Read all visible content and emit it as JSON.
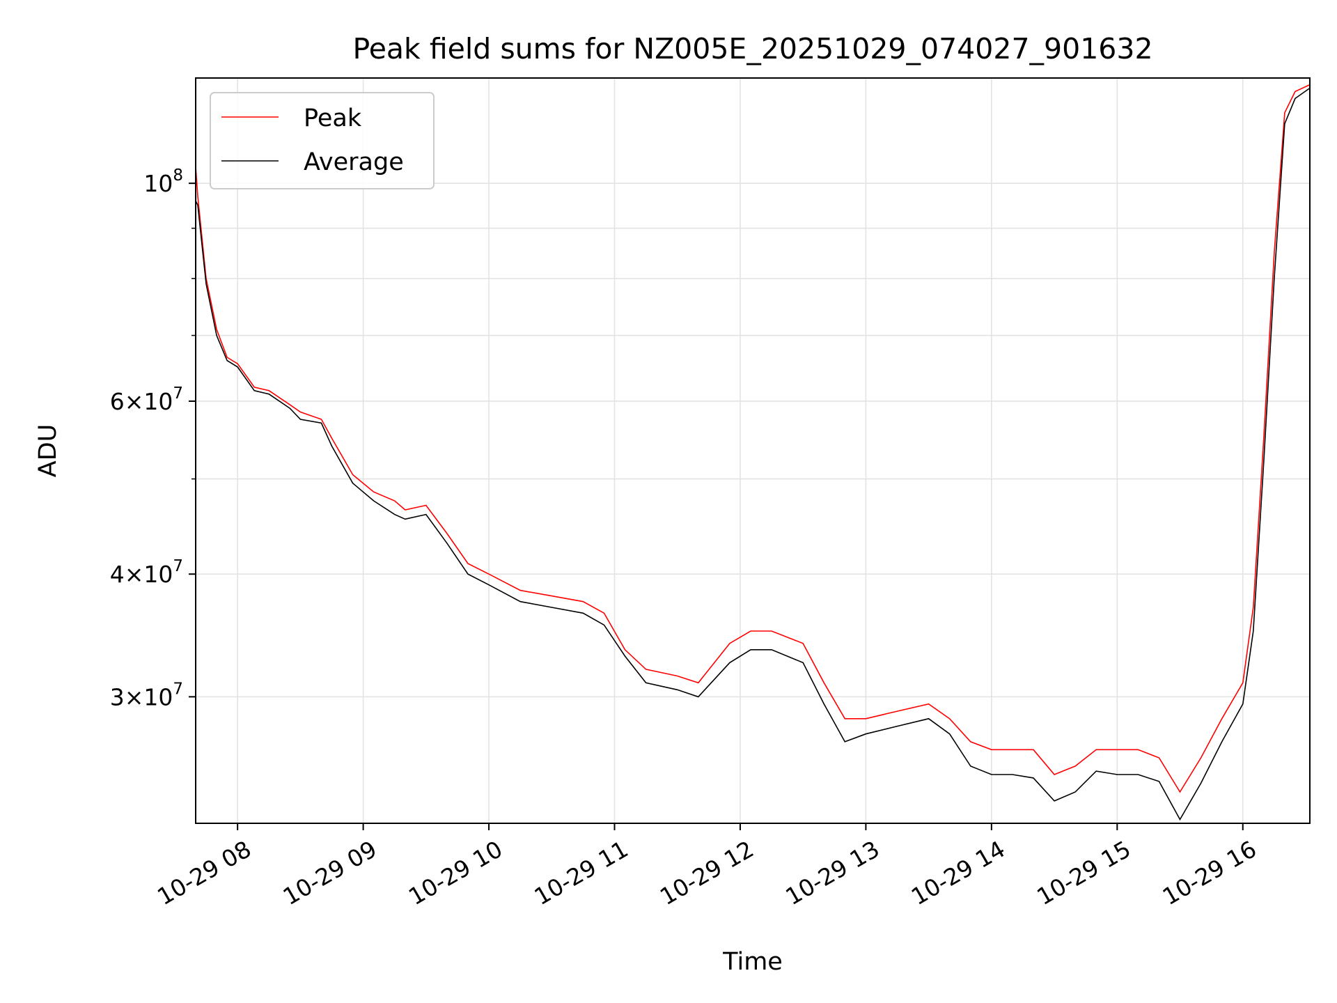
{
  "chart_data": {
    "type": "line",
    "title": "Peak field sums for NZ005E_20251029_074027_901632",
    "xlabel": "Time",
    "ylabel": "ADU",
    "yscale": "log",
    "grid": true,
    "legend_position": "top-left",
    "xlim": [
      "2025-10-29 07:40",
      "2025-10-29 16:32"
    ],
    "ylim": [
      22300000,
      128000000
    ],
    "x_ticks": [
      {
        "value": "2025-10-29 08:00",
        "label": "10-29 08"
      },
      {
        "value": "2025-10-29 09:00",
        "label": "10-29 09"
      },
      {
        "value": "2025-10-29 10:00",
        "label": "10-29 10"
      },
      {
        "value": "2025-10-29 11:00",
        "label": "10-29 11"
      },
      {
        "value": "2025-10-29 12:00",
        "label": "10-29 12"
      },
      {
        "value": "2025-10-29 13:00",
        "label": "10-29 13"
      },
      {
        "value": "2025-10-29 14:00",
        "label": "10-29 14"
      },
      {
        "value": "2025-10-29 15:00",
        "label": "10-29 15"
      },
      {
        "value": "2025-10-29 16:00",
        "label": "10-29 16"
      }
    ],
    "y_ticks": [
      {
        "value": 30000000,
        "mantissa": "3",
        "exponent": "7"
      },
      {
        "value": 40000000,
        "mantissa": "4",
        "exponent": "7"
      },
      {
        "value": 60000000,
        "mantissa": "6",
        "exponent": "7"
      },
      {
        "value": 100000000,
        "mantissa": "",
        "exponent": "8"
      }
    ],
    "y_minor_ticks": [
      50000000,
      70000000,
      80000000,
      90000000
    ],
    "series": [
      {
        "name": "Peak",
        "color": "#ff0000",
        "x": [
          "2025-10-29 07:40",
          "2025-10-29 07:41",
          "2025-10-29 07:45",
          "2025-10-29 07:50",
          "2025-10-29 07:55",
          "2025-10-29 08:00",
          "2025-10-29 08:08",
          "2025-10-29 08:15",
          "2025-10-29 08:25",
          "2025-10-29 08:30",
          "2025-10-29 08:40",
          "2025-10-29 08:45",
          "2025-10-29 08:55",
          "2025-10-29 09:05",
          "2025-10-29 09:15",
          "2025-10-29 09:20",
          "2025-10-29 09:30",
          "2025-10-29 09:40",
          "2025-10-29 09:50",
          "2025-10-29 10:00",
          "2025-10-29 10:15",
          "2025-10-29 10:30",
          "2025-10-29 10:45",
          "2025-10-29 10:55",
          "2025-10-29 11:05",
          "2025-10-29 11:15",
          "2025-10-29 11:30",
          "2025-10-29 11:40",
          "2025-10-29 11:55",
          "2025-10-29 12:05",
          "2025-10-29 12:15",
          "2025-10-29 12:30",
          "2025-10-29 12:40",
          "2025-10-29 12:50",
          "2025-10-29 13:00",
          "2025-10-29 13:15",
          "2025-10-29 13:30",
          "2025-10-29 13:40",
          "2025-10-29 13:50",
          "2025-10-29 14:00",
          "2025-10-29 14:10",
          "2025-10-29 14:20",
          "2025-10-29 14:30",
          "2025-10-29 14:40",
          "2025-10-29 14:50",
          "2025-10-29 15:00",
          "2025-10-29 15:10",
          "2025-10-29 15:20",
          "2025-10-29 15:30",
          "2025-10-29 15:40",
          "2025-10-29 15:50",
          "2025-10-29 16:00",
          "2025-10-29 16:05",
          "2025-10-29 16:10",
          "2025-10-29 16:15",
          "2025-10-29 16:20",
          "2025-10-29 16:25",
          "2025-10-29 16:32"
        ],
        "values": [
          104000000,
          97000000,
          80000000,
          71000000,
          66500000,
          65500000,
          62000000,
          61500000,
          59500000,
          58500000,
          57500000,
          55000000,
          50500000,
          48500000,
          47500000,
          46500000,
          47000000,
          44000000,
          41000000,
          40000000,
          38500000,
          38000000,
          37500000,
          36500000,
          33500000,
          32000000,
          31500000,
          31000000,
          34000000,
          35000000,
          35000000,
          34000000,
          31000000,
          28500000,
          28500000,
          29000000,
          29500000,
          28500000,
          27000000,
          26500000,
          26500000,
          26500000,
          25000000,
          25500000,
          26500000,
          26500000,
          26500000,
          26000000,
          24000000,
          26000000,
          28500000,
          31000000,
          37000000,
          55000000,
          85000000,
          118000000,
          124000000,
          126000000
        ]
      },
      {
        "name": "Average",
        "color": "#000000",
        "x": [
          "2025-10-29 07:40",
          "2025-10-29 07:41",
          "2025-10-29 07:45",
          "2025-10-29 07:50",
          "2025-10-29 07:55",
          "2025-10-29 08:00",
          "2025-10-29 08:08",
          "2025-10-29 08:15",
          "2025-10-29 08:25",
          "2025-10-29 08:30",
          "2025-10-29 08:40",
          "2025-10-29 08:45",
          "2025-10-29 08:55",
          "2025-10-29 09:05",
          "2025-10-29 09:15",
          "2025-10-29 09:20",
          "2025-10-29 09:30",
          "2025-10-29 09:40",
          "2025-10-29 09:50",
          "2025-10-29 10:00",
          "2025-10-29 10:15",
          "2025-10-29 10:30",
          "2025-10-29 10:45",
          "2025-10-29 10:55",
          "2025-10-29 11:05",
          "2025-10-29 11:15",
          "2025-10-29 11:30",
          "2025-10-29 11:40",
          "2025-10-29 11:55",
          "2025-10-29 12:05",
          "2025-10-29 12:15",
          "2025-10-29 12:30",
          "2025-10-29 12:40",
          "2025-10-29 12:50",
          "2025-10-29 13:00",
          "2025-10-29 13:15",
          "2025-10-29 13:30",
          "2025-10-29 13:40",
          "2025-10-29 13:50",
          "2025-10-29 14:00",
          "2025-10-29 14:10",
          "2025-10-29 14:20",
          "2025-10-29 14:30",
          "2025-10-29 14:40",
          "2025-10-29 14:50",
          "2025-10-29 15:00",
          "2025-10-29 15:10",
          "2025-10-29 15:20",
          "2025-10-29 15:30",
          "2025-10-29 15:40",
          "2025-10-29 15:50",
          "2025-10-29 16:00",
          "2025-10-29 16:05",
          "2025-10-29 16:10",
          "2025-10-29 16:15",
          "2025-10-29 16:20",
          "2025-10-29 16:25",
          "2025-10-29 16:32"
        ],
        "values": [
          96000000,
          95000000,
          79000000,
          70000000,
          66000000,
          65000000,
          61500000,
          61000000,
          59000000,
          57500000,
          57000000,
          54000000,
          49500000,
          47500000,
          46000000,
          45500000,
          46000000,
          43000000,
          40000000,
          39000000,
          37500000,
          37000000,
          36500000,
          35500000,
          33000000,
          31000000,
          30500000,
          30000000,
          32500000,
          33500000,
          33500000,
          32500000,
          29500000,
          27000000,
          27500000,
          28000000,
          28500000,
          27500000,
          25500000,
          25000000,
          25000000,
          24800000,
          23500000,
          24000000,
          25200000,
          25000000,
          25000000,
          24600000,
          22500000,
          24500000,
          27000000,
          29500000,
          35000000,
          52000000,
          80000000,
          115000000,
          122000000,
          125000000
        ]
      }
    ]
  }
}
